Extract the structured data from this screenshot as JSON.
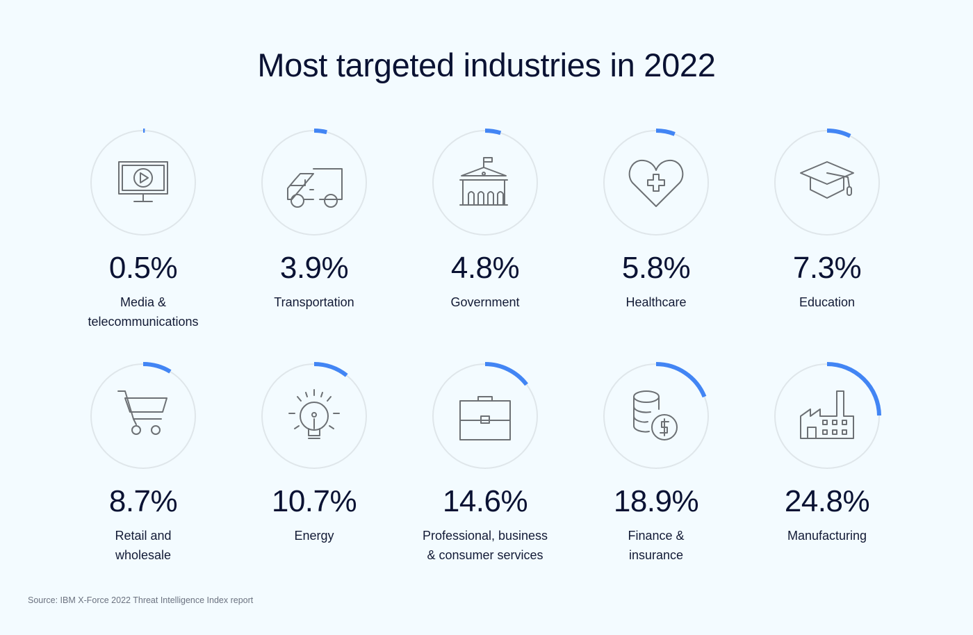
{
  "title": "Most targeted industries in 2022",
  "source": "Source: IBM X-Force 2022 Threat Intelligence Index report",
  "colors": {
    "accent": "#4285f4",
    "track": "#dfe6ea",
    "background": "#f3fbff"
  },
  "chart_data": {
    "type": "radial-progress",
    "title": "Most targeted industries in 2022",
    "unit": "%",
    "categories": [
      "Media & telecommunications",
      "Transportation",
      "Government",
      "Healthcare",
      "Education",
      "Retail and wholesale",
      "Energy",
      "Professional, business & consumer services",
      "Finance & insurance",
      "Manufacturing"
    ],
    "values": [
      0.5,
      3.9,
      4.8,
      5.8,
      7.3,
      8.7,
      10.7,
      14.6,
      18.9,
      24.8
    ],
    "items": [
      {
        "value_text": "0.5%",
        "value": 0.5,
        "label_lines": [
          "Media &",
          "telecommunications"
        ],
        "icon": "monitor-play-icon"
      },
      {
        "value_text": "3.9%",
        "value": 3.9,
        "label_lines": [
          "Transportation"
        ],
        "icon": "truck-icon"
      },
      {
        "value_text": "4.8%",
        "value": 4.8,
        "label_lines": [
          "Government"
        ],
        "icon": "government-building-icon"
      },
      {
        "value_text": "5.8%",
        "value": 5.8,
        "label_lines": [
          "Healthcare"
        ],
        "icon": "heart-cross-icon"
      },
      {
        "value_text": "7.3%",
        "value": 7.3,
        "label_lines": [
          "Education"
        ],
        "icon": "graduation-cap-icon"
      },
      {
        "value_text": "8.7%",
        "value": 8.7,
        "label_lines": [
          "Retail and",
          "wholesale"
        ],
        "icon": "shopping-cart-icon"
      },
      {
        "value_text": "10.7%",
        "value": 10.7,
        "label_lines": [
          "Energy"
        ],
        "icon": "light-bulb-icon"
      },
      {
        "value_text": "14.6%",
        "value": 14.6,
        "label_lines": [
          "Professional, business",
          "& consumer services"
        ],
        "icon": "briefcase-icon"
      },
      {
        "value_text": "18.9%",
        "value": 18.9,
        "label_lines": [
          "Finance &",
          "insurance"
        ],
        "icon": "coins-dollar-icon"
      },
      {
        "value_text": "24.8%",
        "value": 24.8,
        "label_lines": [
          "Manufacturing"
        ],
        "icon": "factory-icon"
      }
    ]
  }
}
